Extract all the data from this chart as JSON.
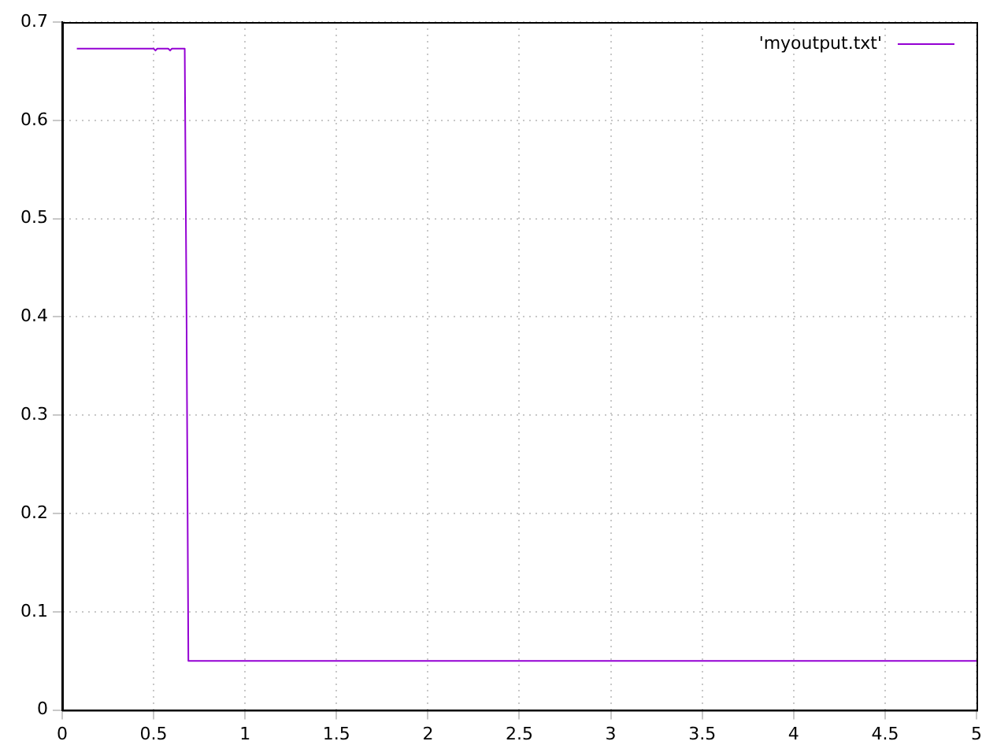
{
  "chart_data": {
    "type": "line",
    "xlim": [
      0,
      5
    ],
    "xticks": [
      0,
      0.5,
      1,
      1.5,
      2,
      2.5,
      3,
      3.5,
      4,
      4.5,
      5
    ],
    "ylim": [
      0,
      0.7
    ],
    "yticks": [
      0,
      0.1,
      0.2,
      0.3,
      0.4,
      0.5,
      0.6,
      0.7
    ],
    "grid": true,
    "legend": "top right",
    "marker": "none",
    "x": [
      0.08,
      0.5,
      0.51,
      0.52,
      0.53,
      0.56,
      0.58,
      0.59,
      0.6,
      0.61,
      0.63,
      0.66,
      0.67,
      0.68,
      0.69,
      5
    ],
    "series": [
      {
        "name": "'myoutput.txt'",
        "color": "#9400d3",
        "values": [
          0.673,
          0.673,
          0.671,
          0.673,
          0.673,
          0.673,
          0.673,
          0.671,
          0.673,
          0.673,
          0.673,
          0.673,
          0.673,
          0.4,
          0.05,
          0.05
        ]
      }
    ]
  }
}
